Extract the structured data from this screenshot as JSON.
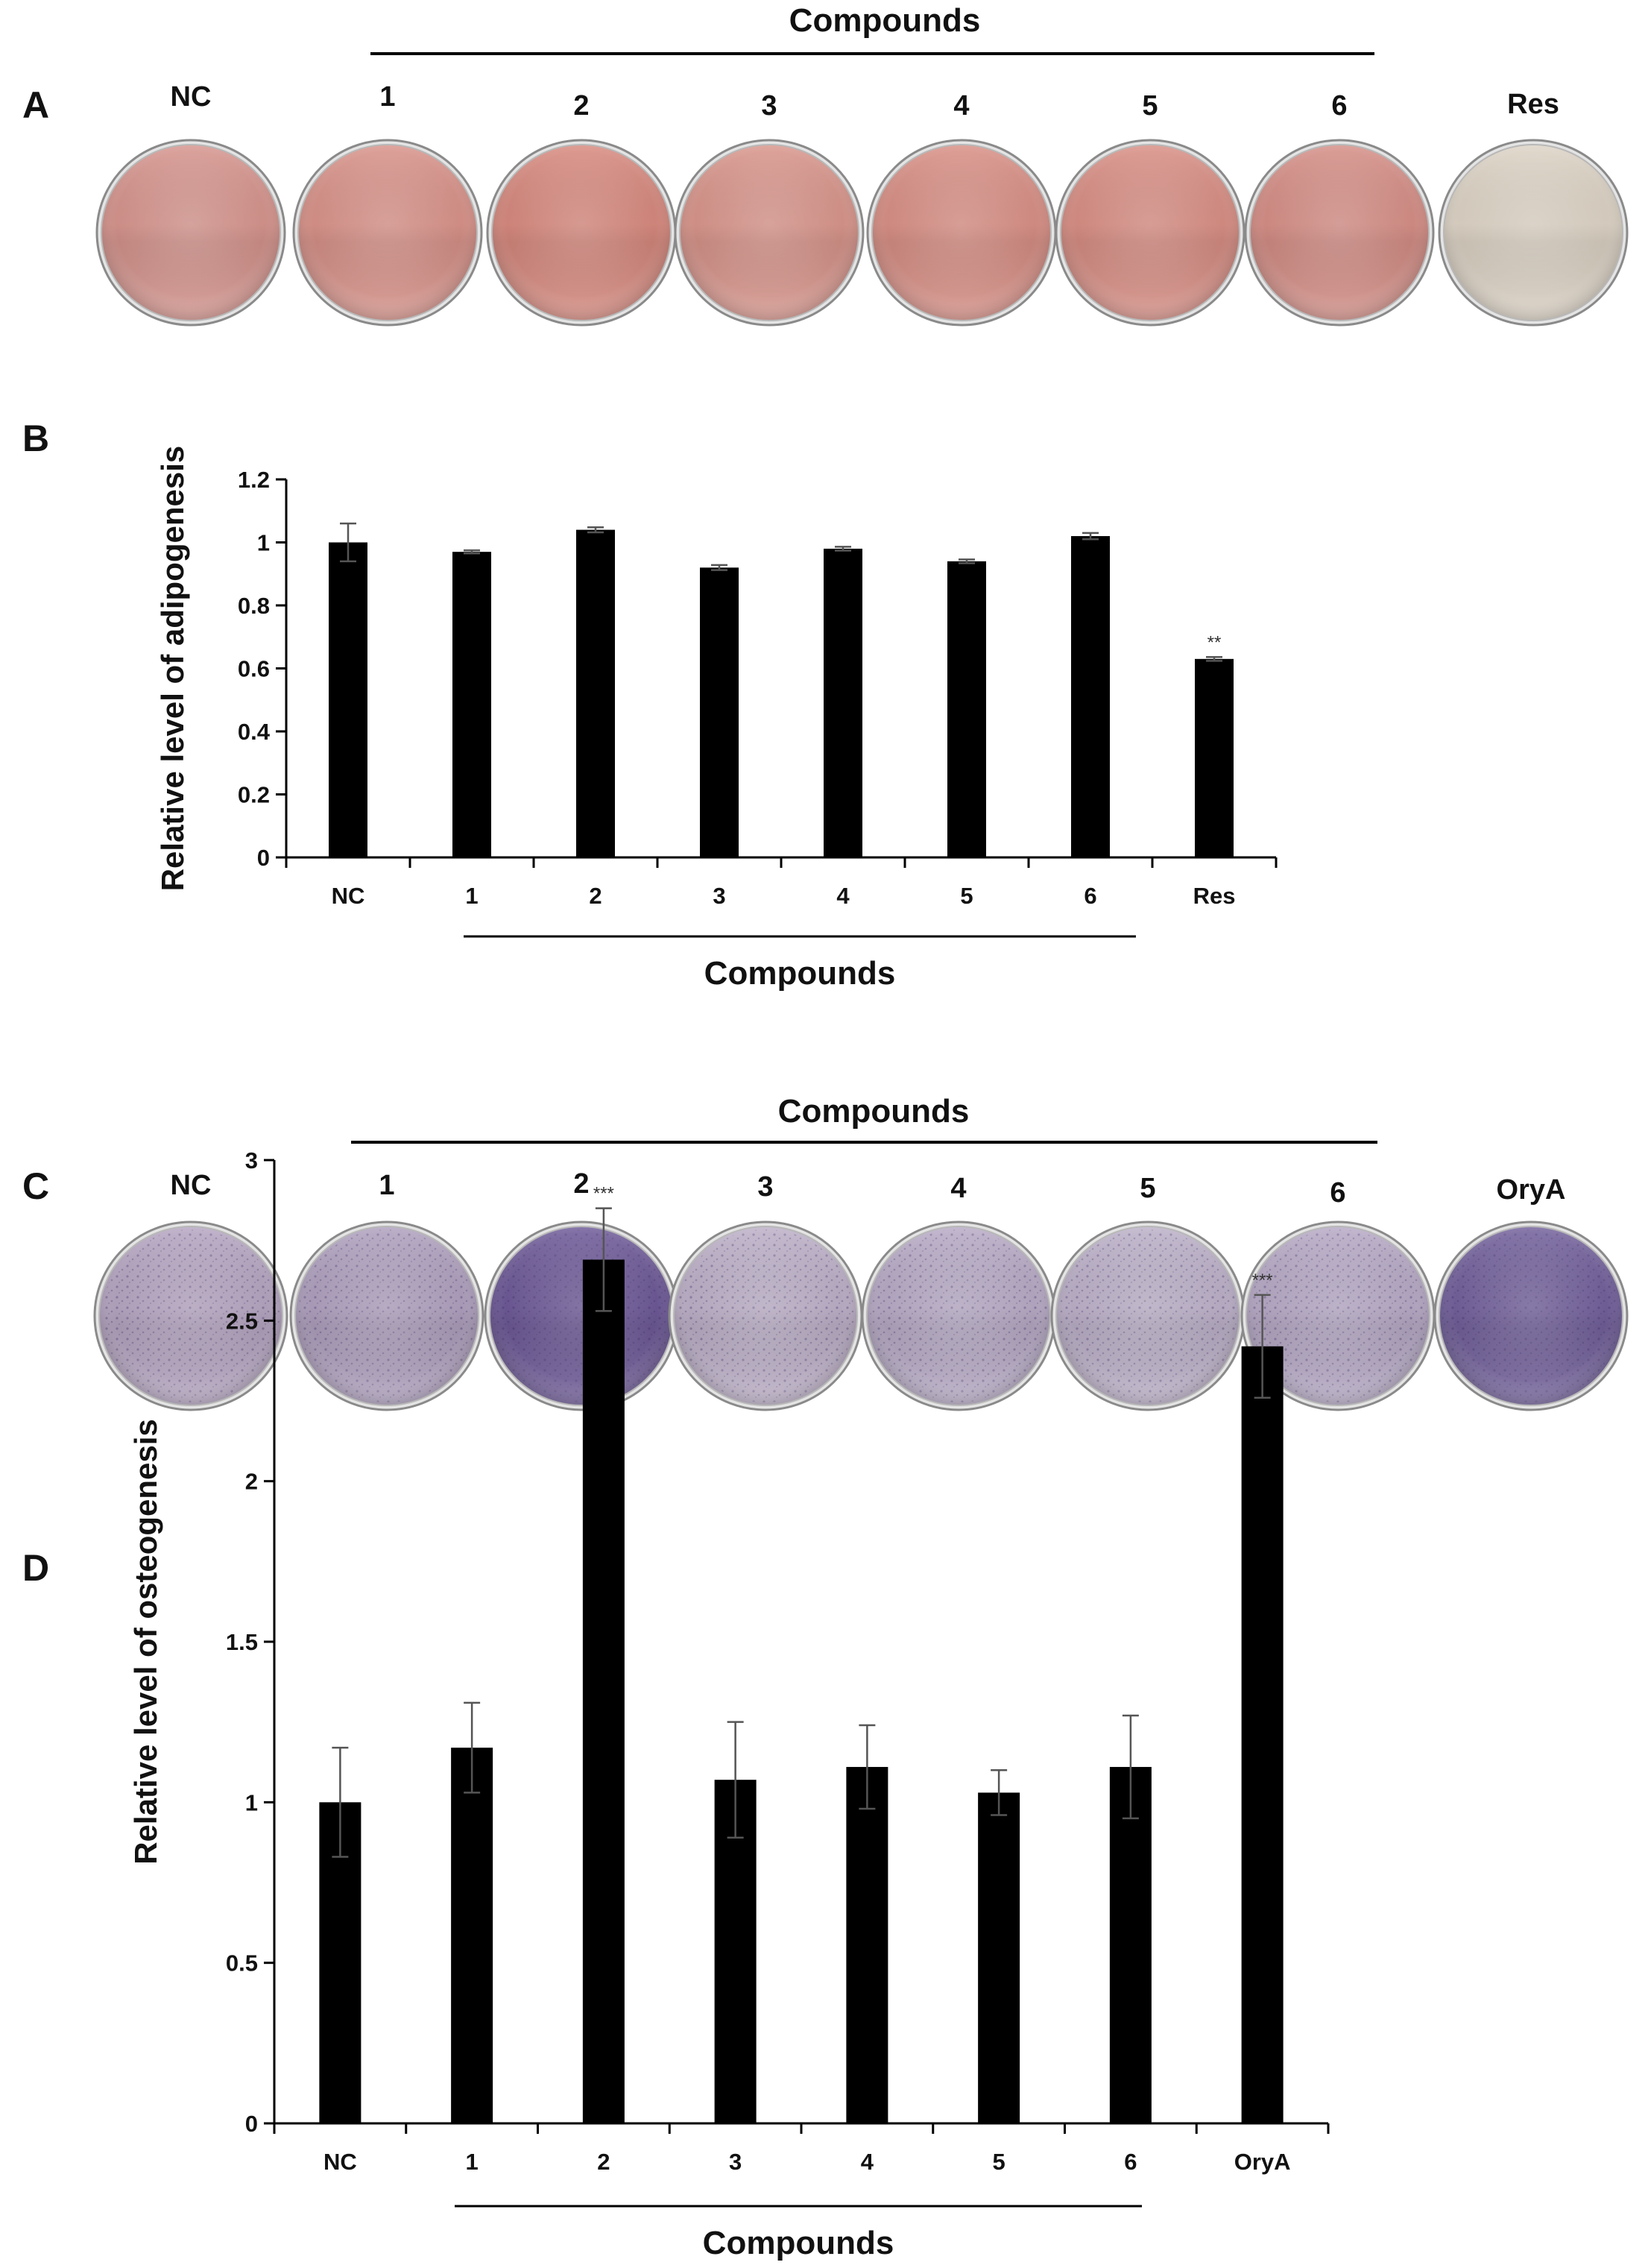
{
  "panels": {
    "A": {
      "letter": "A",
      "group_label": "Compounds",
      "dishes": [
        {
          "label": "NC",
          "stain": "#d7958e"
        },
        {
          "label": "1",
          "stain": "#d9938a"
        },
        {
          "label": "2",
          "stain": "#d88a7f"
        },
        {
          "label": "3",
          "stain": "#d9968c"
        },
        {
          "label": "4",
          "stain": "#d99086"
        },
        {
          "label": "5",
          "stain": "#d98f85"
        },
        {
          "label": "6",
          "stain": "#d68f87"
        },
        {
          "label": "Res",
          "stain": "#ded4c6"
        }
      ]
    },
    "B": {
      "letter": "B"
    },
    "C": {
      "letter": "C",
      "group_label": "Compounds",
      "dishes": [
        {
          "label": "NC",
          "stain": "#b6a6c2"
        },
        {
          "label": "1",
          "stain": "#b0a1bf"
        },
        {
          "label": "2",
          "stain": "#6e5a98"
        },
        {
          "label": "3",
          "stain": "#bdb0c8"
        },
        {
          "label": "4",
          "stain": "#b8abc6"
        },
        {
          "label": "5",
          "stain": "#bdb1c9"
        },
        {
          "label": "6",
          "stain": "#b7aac6"
        },
        {
          "label": "OryA",
          "stain": "#73619c"
        }
      ]
    },
    "D": {
      "letter": "D"
    }
  },
  "chart_data": [
    {
      "id": "B",
      "type": "bar",
      "ylabel": "Relative level of adipogenesis",
      "xlabel": "",
      "group_label": "Compounds",
      "categories": [
        "NC",
        "1",
        "2",
        "3",
        "4",
        "5",
        "6",
        "Res"
      ],
      "values": [
        1.0,
        0.97,
        1.04,
        0.92,
        0.98,
        0.94,
        1.02,
        0.63
      ],
      "errors": [
        0.06,
        0.005,
        0.008,
        0.008,
        0.006,
        0.006,
        0.01,
        0.006
      ],
      "significance": [
        "",
        "",
        "",
        "",
        "",
        "",
        "",
        "**"
      ],
      "ylim": [
        0,
        1.2
      ],
      "yticks": [
        0,
        0.2,
        0.4,
        0.6,
        0.8,
        1,
        1.2
      ],
      "ytick_labels": [
        "0",
        "0.2",
        "0.4",
        "0.6",
        "0.8",
        "1",
        "1.2"
      ],
      "bar_color": "#000000",
      "grid": false
    },
    {
      "id": "D",
      "type": "bar",
      "ylabel": "Relative level of osteogenesis",
      "xlabel": "",
      "group_label": "Compounds",
      "categories": [
        "NC",
        "1",
        "2",
        "3",
        "4",
        "5",
        "6",
        "OryA"
      ],
      "values": [
        1.0,
        1.17,
        2.69,
        1.07,
        1.11,
        1.03,
        1.11,
        2.42
      ],
      "errors": [
        0.17,
        0.14,
        0.16,
        0.18,
        0.13,
        0.07,
        0.16,
        0.16
      ],
      "significance": [
        "",
        "",
        "***",
        "",
        "",
        "",
        "",
        "***"
      ],
      "ylim": [
        0,
        3
      ],
      "yticks": [
        0,
        0.5,
        1,
        1.5,
        2,
        2.5,
        3
      ],
      "ytick_labels": [
        "0",
        "0.5",
        "1",
        "1.5",
        "2",
        "2.5",
        "3"
      ],
      "bar_color": "#000000",
      "grid": false
    }
  ]
}
